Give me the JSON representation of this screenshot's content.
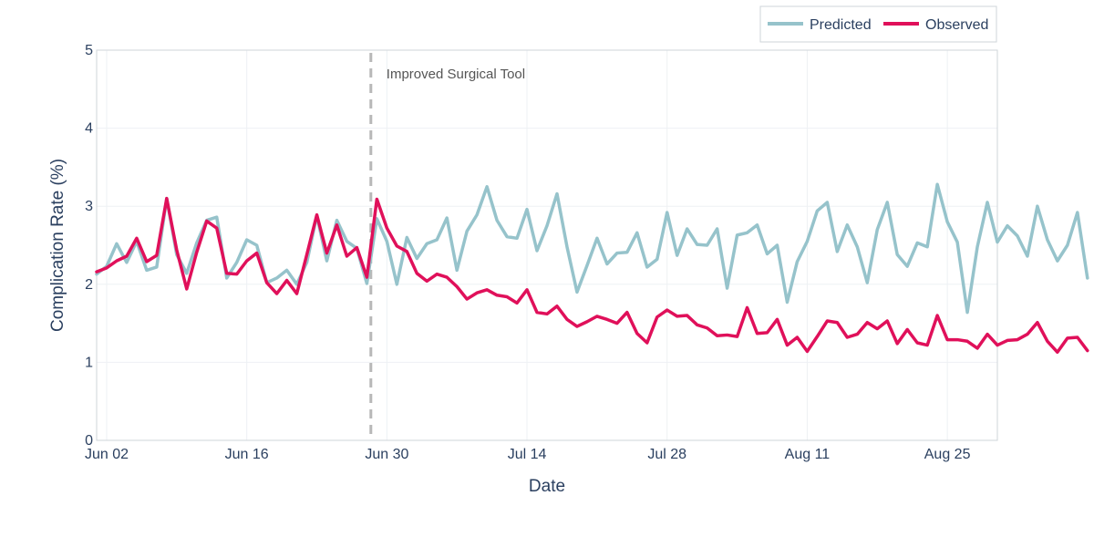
{
  "chart_data": {
    "type": "line",
    "title": "",
    "xlabel": "Date",
    "ylabel": "Complication Rate (%)",
    "ylim": [
      0,
      5
    ],
    "yticks": [
      0,
      1,
      2,
      3,
      4,
      5
    ],
    "x_start": "2024-06-01",
    "x_range_days": [
      0,
      90
    ],
    "xticks": [
      {
        "day": 1,
        "label": "Jun 02"
      },
      {
        "day": 15,
        "label": "Jun 16"
      },
      {
        "day": 29,
        "label": "Jun 30"
      },
      {
        "day": 43,
        "label": "Jul 14"
      },
      {
        "day": 57,
        "label": "Jul 28"
      },
      {
        "day": 71,
        "label": "Aug 11"
      },
      {
        "day": 85,
        "label": "Aug 25"
      }
    ],
    "grid": true,
    "legend_position": "top-right",
    "annotation": {
      "day": 27.4,
      "label": "Improved Surgical Tool",
      "style": "dashed-vertical"
    },
    "series": [
      {
        "name": "Predicted",
        "color": "#96c3cb",
        "values": [
          2.13,
          2.23,
          2.52,
          2.28,
          2.55,
          2.18,
          2.22,
          3.1,
          2.38,
          2.14,
          2.53,
          2.82,
          2.86,
          2.08,
          2.28,
          2.57,
          2.5,
          2.02,
          2.08,
          2.18,
          2.0,
          2.28,
          2.88,
          2.3,
          2.82,
          2.55,
          2.46,
          2.01,
          2.84,
          2.55,
          2.0,
          2.6,
          2.33,
          2.52,
          2.57,
          2.85,
          2.18,
          2.68,
          2.89,
          3.25,
          2.82,
          2.61,
          2.59,
          2.96,
          2.43,
          2.75,
          3.16,
          2.48,
          1.9,
          2.24,
          2.59,
          2.26,
          2.4,
          2.41,
          2.66,
          2.22,
          2.32,
          2.92,
          2.37,
          2.71,
          2.51,
          2.5,
          2.71,
          1.95,
          2.63,
          2.66,
          2.76,
          2.39,
          2.5,
          1.77,
          2.29,
          2.55,
          2.94,
          3.05,
          2.42,
          2.76,
          2.48,
          2.02,
          2.7,
          3.05,
          2.38,
          2.23,
          2.53,
          2.48,
          3.28,
          2.8,
          2.54,
          1.64,
          2.48,
          3.05,
          2.54,
          2.75,
          2.62,
          2.36,
          3.0,
          2.57,
          2.3,
          2.5,
          2.92,
          2.08
        ]
      },
      {
        "name": "Observed",
        "color": "#e0105a",
        "values": [
          2.16,
          2.21,
          2.3,
          2.36,
          2.59,
          2.29,
          2.37,
          3.1,
          2.44,
          1.94,
          2.41,
          2.81,
          2.72,
          2.14,
          2.13,
          2.3,
          2.4,
          2.02,
          1.88,
          2.05,
          1.88,
          2.38,
          2.89,
          2.4,
          2.76,
          2.36,
          2.47,
          2.09,
          3.09,
          2.72,
          2.49,
          2.42,
          2.14,
          2.04,
          2.13,
          2.09,
          1.97,
          1.81,
          1.89,
          1.93,
          1.86,
          1.84,
          1.76,
          1.93,
          1.64,
          1.62,
          1.72,
          1.55,
          1.46,
          1.52,
          1.59,
          1.55,
          1.5,
          1.64,
          1.37,
          1.25,
          1.58,
          1.67,
          1.59,
          1.6,
          1.48,
          1.44,
          1.34,
          1.35,
          1.33,
          1.7,
          1.37,
          1.38,
          1.55,
          1.22,
          1.32,
          1.14,
          1.33,
          1.53,
          1.51,
          1.32,
          1.36,
          1.51,
          1.43,
          1.53,
          1.24,
          1.42,
          1.25,
          1.22,
          1.6,
          1.29,
          1.29,
          1.27,
          1.18,
          1.36,
          1.22,
          1.28,
          1.29,
          1.36,
          1.51,
          1.27,
          1.13,
          1.31,
          1.32,
          1.15
        ]
      }
    ]
  }
}
